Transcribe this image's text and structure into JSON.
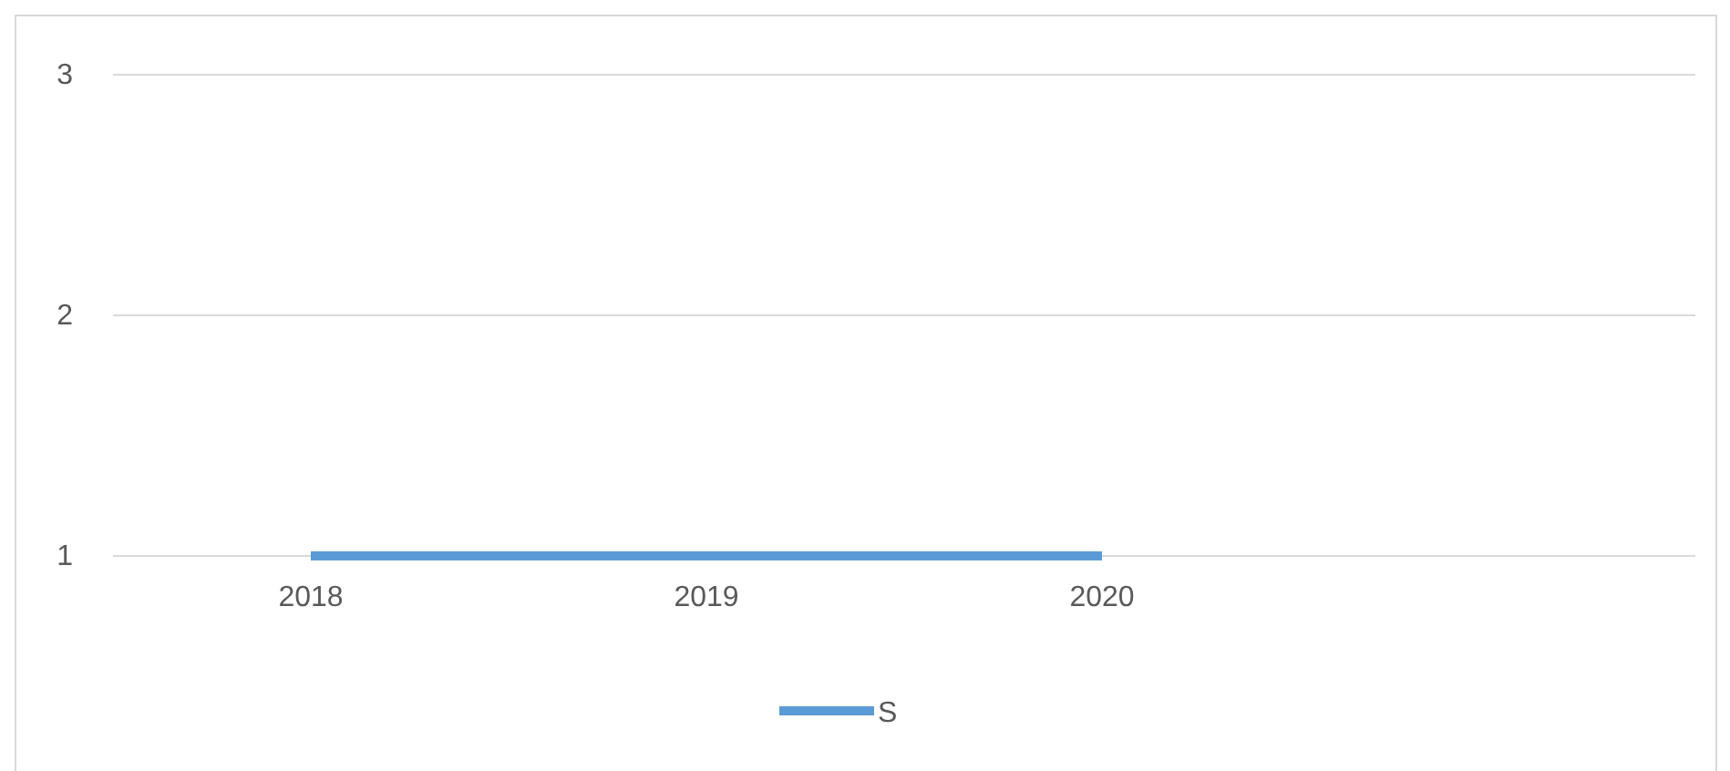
{
  "chart_data": {
    "type": "line",
    "categories": [
      "2018",
      "2019",
      "2020",
      null
    ],
    "series": [
      {
        "name": "S",
        "color": "#5b9bd5",
        "values": [
          1,
          1,
          1,
          null
        ]
      }
    ],
    "ylim": [
      1,
      3
    ],
    "yticks": [
      1,
      2,
      3
    ],
    "grid": "y",
    "legend": "bottom",
    "marker": "none",
    "line_style": "solid"
  }
}
